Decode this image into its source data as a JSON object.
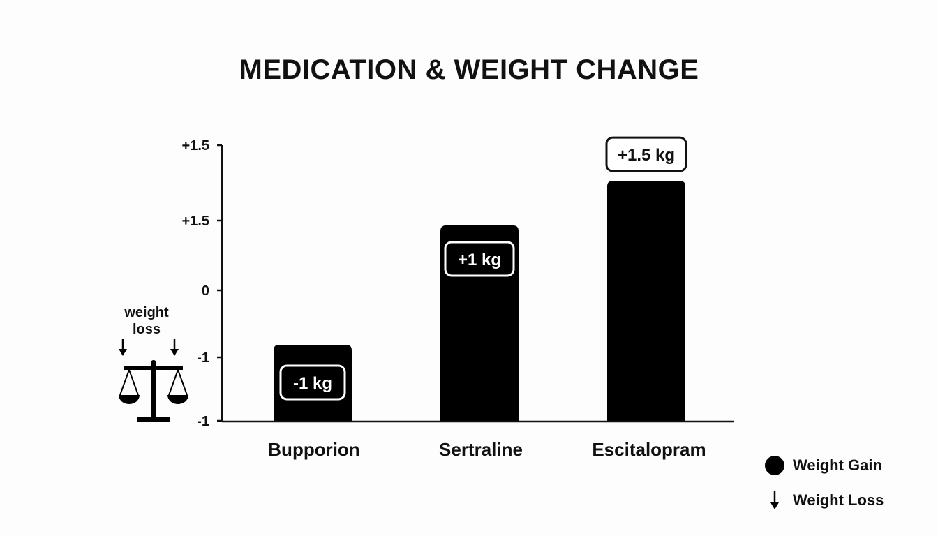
{
  "chart_data": {
    "type": "bar",
    "title": "MEDICATION & WEIGHT CHANGE",
    "categories": [
      "Bupporion",
      "Sertraline",
      "Escitalopram"
    ],
    "values": [
      -1,
      1,
      1.5
    ],
    "data_labels": [
      "-1 kg",
      "+1 kg",
      "+1.5 kg"
    ],
    "y_tick_labels": [
      "+1.5",
      "+1.5",
      "0",
      "-1",
      "-1"
    ],
    "ylim": [
      -1.2,
      1.9
    ],
    "grid": false,
    "legend": {
      "placement": "bottom-right",
      "items": [
        {
          "label": "Weight Gain",
          "marker": "filled-circle"
        },
        {
          "label": "Weight Loss",
          "marker": "down-arrow"
        }
      ]
    },
    "annotation": {
      "text_line1": "weight",
      "text_line2": "loss",
      "icon": "balance-scale-icon"
    }
  },
  "colors": {
    "bar": "#000000",
    "text": "#111111",
    "label_bg": "#ffffff"
  }
}
